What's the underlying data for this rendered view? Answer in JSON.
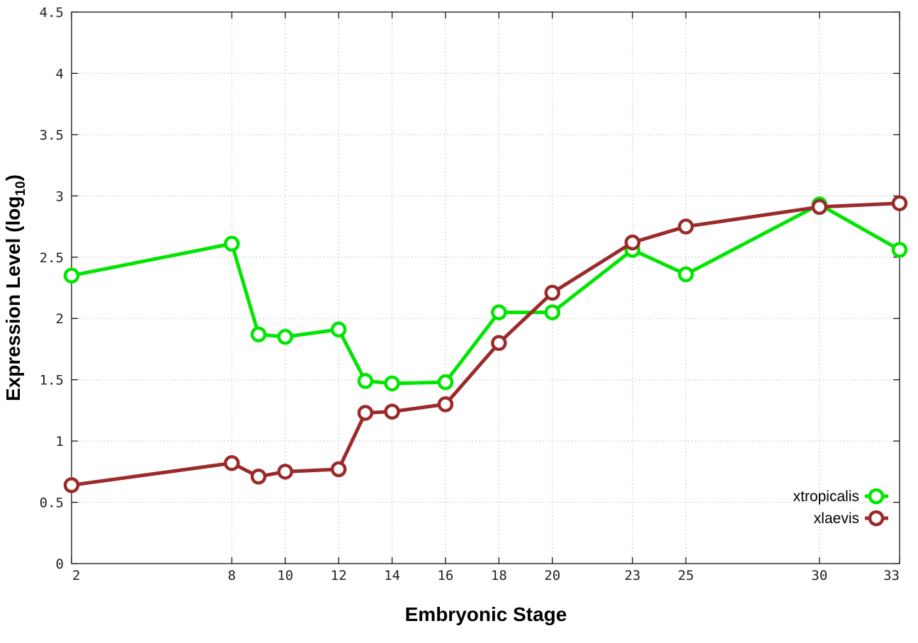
{
  "chart_data": {
    "type": "line",
    "xlabel": "Embryonic Stage",
    "ylabel": {
      "prefix": "Expression Level (log",
      "subscript": "10",
      "suffix": ")"
    },
    "xticks": [
      2,
      8,
      10,
      12,
      14,
      16,
      18,
      20,
      23,
      25,
      30,
      33
    ],
    "yticks": [
      "0",
      "0.5",
      "1",
      "1.5",
      "2",
      "2.5",
      "3",
      "3.5",
      "4",
      "4.5"
    ],
    "xlim": [
      2,
      33
    ],
    "ylim": [
      0,
      4.5
    ],
    "grid": true,
    "legend_position": "bottom-right",
    "x": [
      2,
      8,
      9,
      10,
      12,
      13,
      14,
      16,
      18,
      20,
      23,
      25,
      30,
      33
    ],
    "series": [
      {
        "name": "xtropicalis",
        "color": "#00e600",
        "values": [
          2.35,
          2.61,
          1.87,
          1.85,
          1.91,
          1.49,
          1.47,
          1.48,
          2.05,
          2.05,
          2.56,
          2.36,
          2.93,
          2.56
        ]
      },
      {
        "name": "xlaevis",
        "color": "#9b2a2a",
        "values": [
          0.64,
          0.82,
          0.71,
          0.75,
          0.77,
          1.23,
          1.24,
          1.3,
          1.8,
          2.21,
          2.62,
          2.75,
          2.91,
          2.94
        ]
      }
    ]
  }
}
